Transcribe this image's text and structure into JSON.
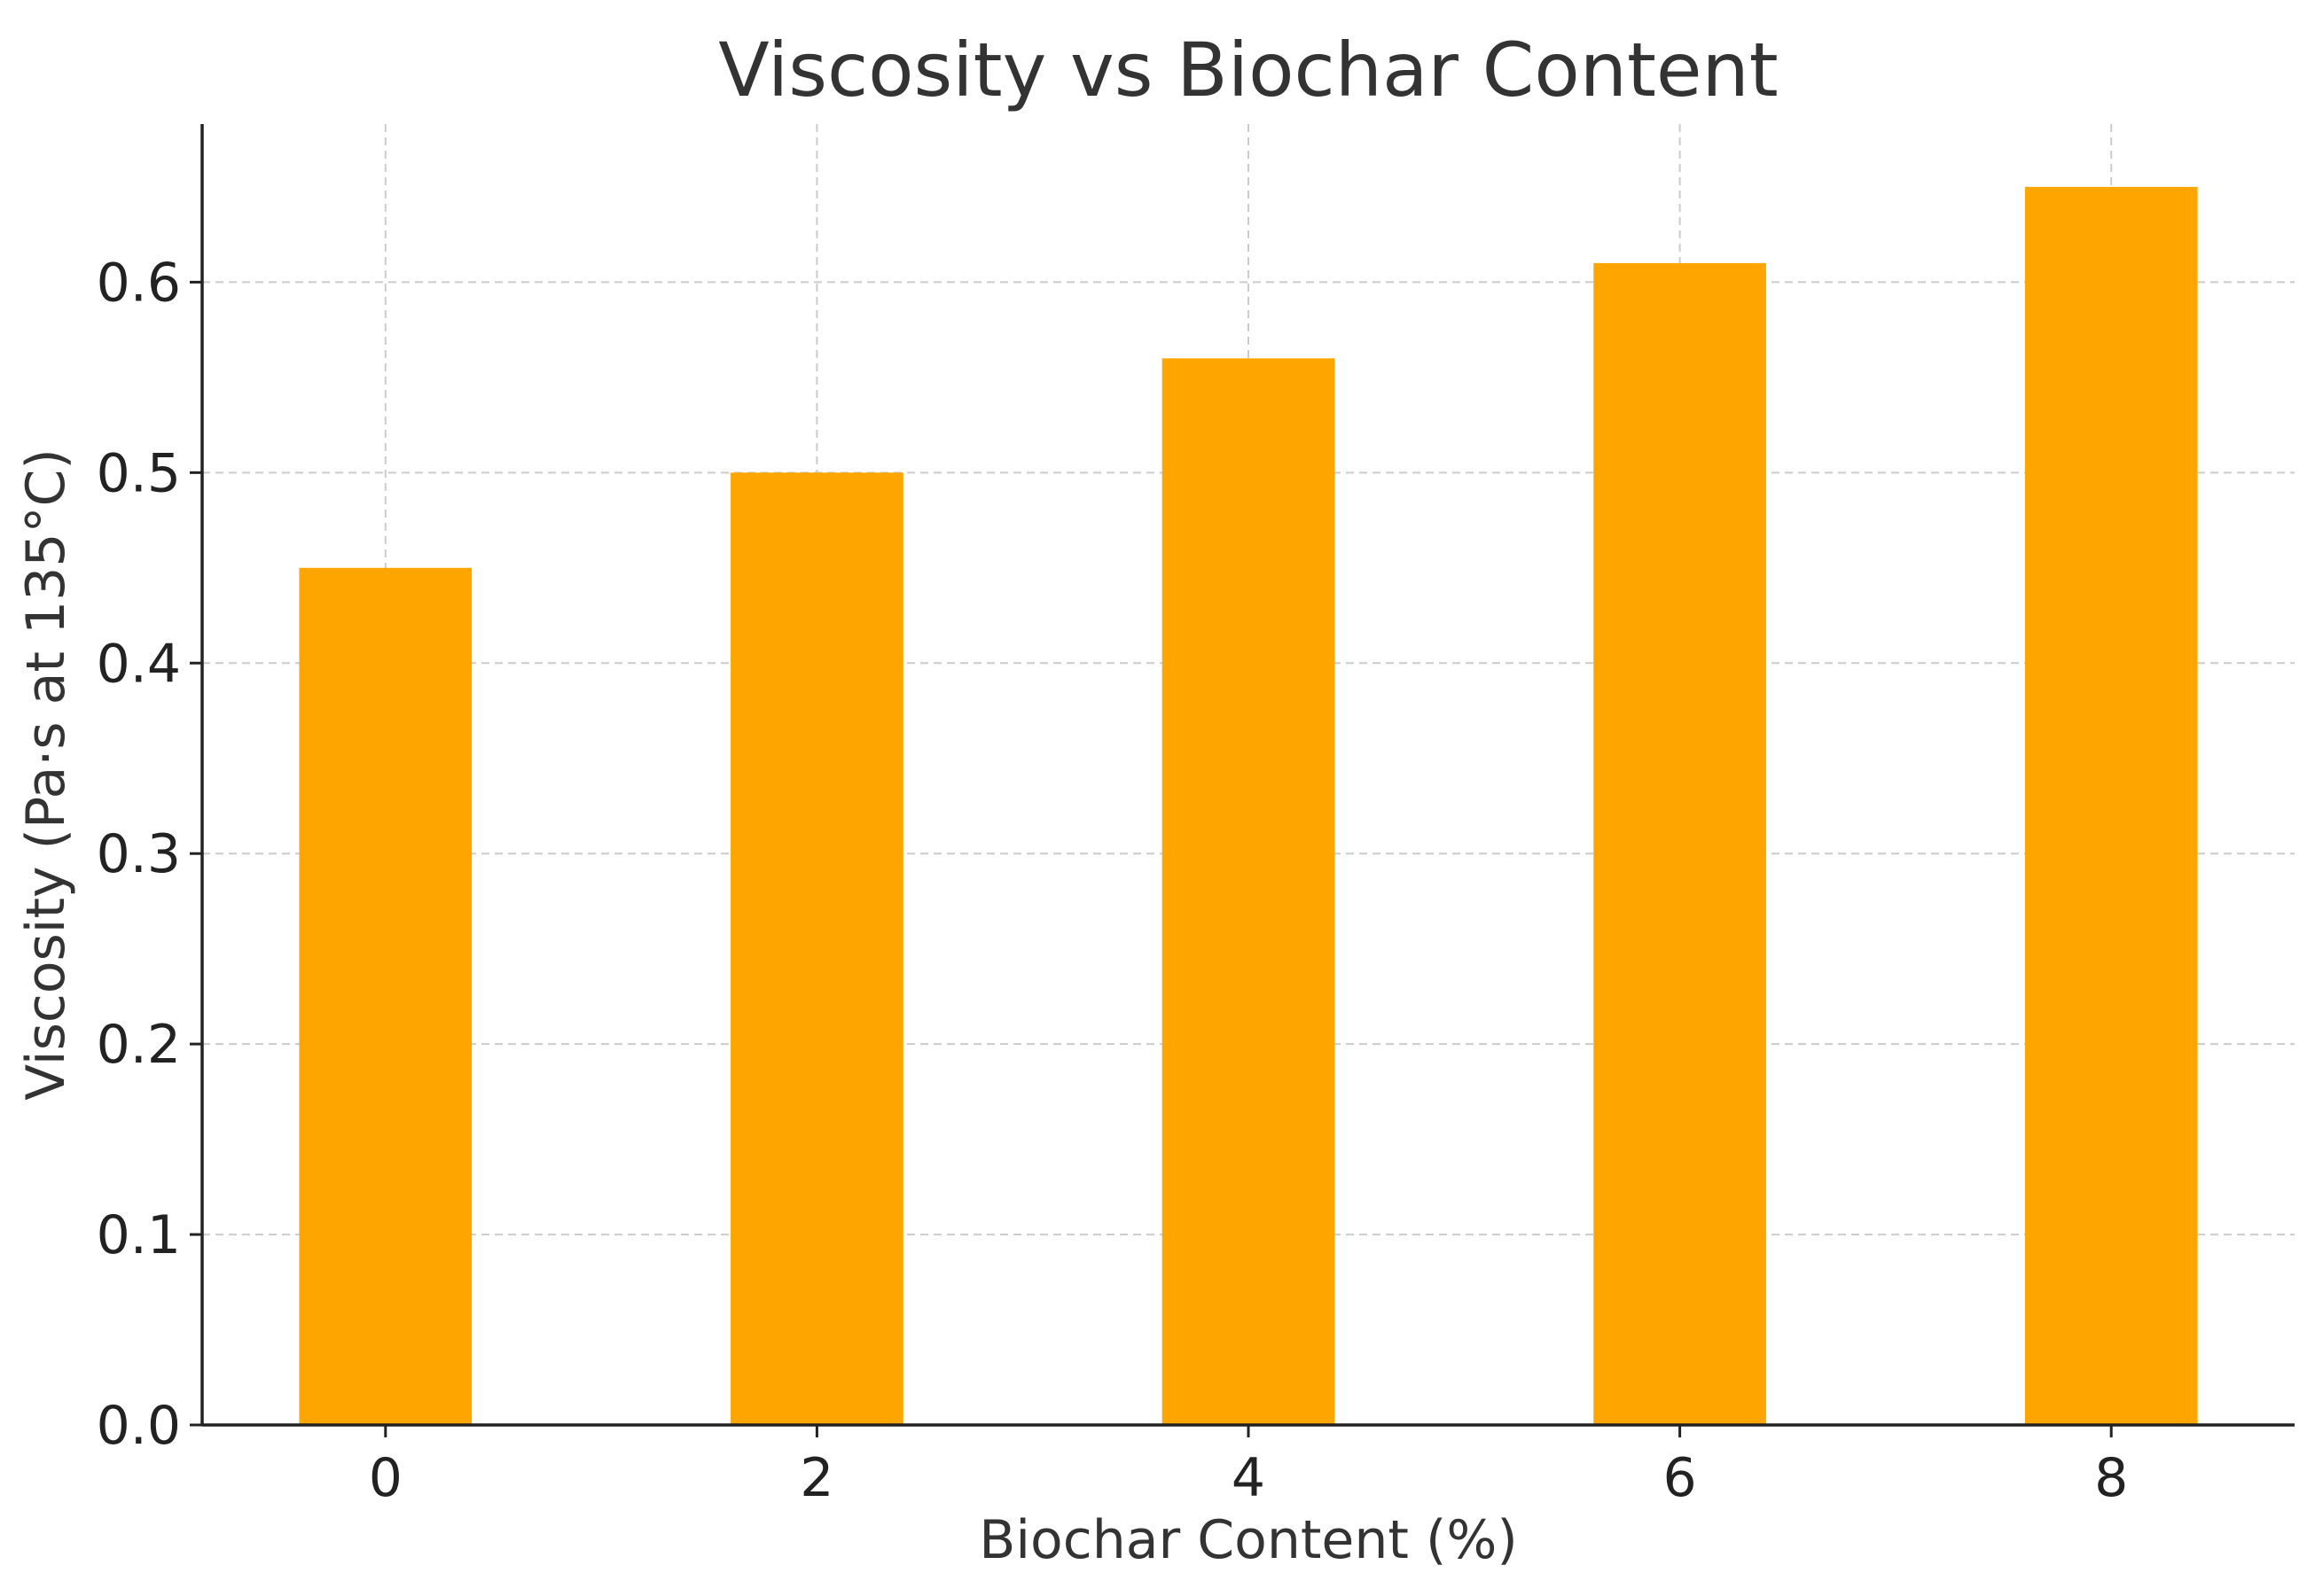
{
  "chart_data": {
    "type": "bar",
    "title": "Viscosity vs Biochar Content",
    "xlabel": "Biochar Content (%)",
    "ylabel": "Viscosity (Pa·s at 135°C)",
    "x": [
      0,
      2,
      4,
      6,
      8
    ],
    "values": [
      0.45,
      0.5,
      0.56,
      0.61,
      0.65
    ],
    "x_ticks": [
      "0",
      "2",
      "4",
      "6",
      "8"
    ],
    "y_ticks": [
      "0.0",
      "0.1",
      "0.2",
      "0.3",
      "0.4",
      "0.5",
      "0.6"
    ],
    "xlim": [
      -0.85,
      8.85
    ],
    "ylim": [
      0,
      0.683
    ],
    "grid": true,
    "bar_color": "#FFA500"
  }
}
